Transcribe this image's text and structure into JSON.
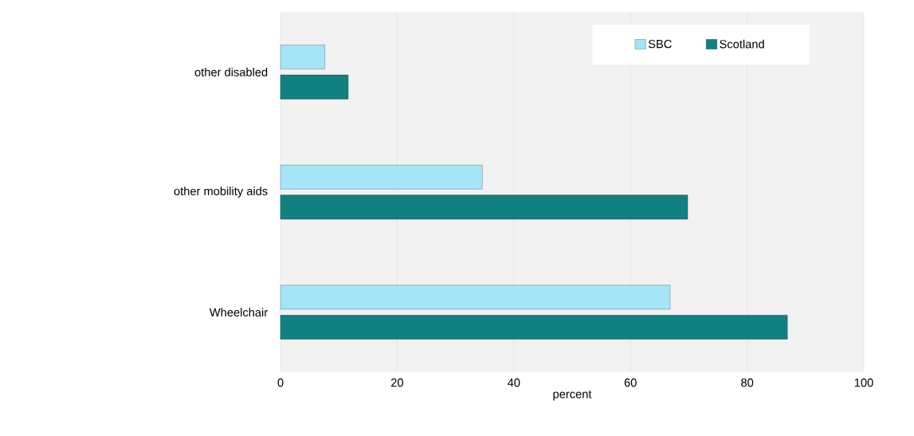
{
  "chart_data": {
    "type": "bar",
    "orientation": "horizontal",
    "xlabel": "percent",
    "categories": [
      "other disabled",
      "other mobility aids",
      "Wheelchair"
    ],
    "series": [
      {
        "name": "SBC",
        "color": "#a6e4f7",
        "values": [
          7.6,
          34.6,
          66.8
        ]
      },
      {
        "name": "Scotland",
        "color": "#128080",
        "values": [
          11.6,
          69.8,
          86.9
        ]
      }
    ],
    "xlim": [
      0,
      100
    ],
    "xticks": [
      0,
      20,
      40,
      60,
      80,
      100
    ],
    "grid": "x",
    "legend": "top right"
  }
}
